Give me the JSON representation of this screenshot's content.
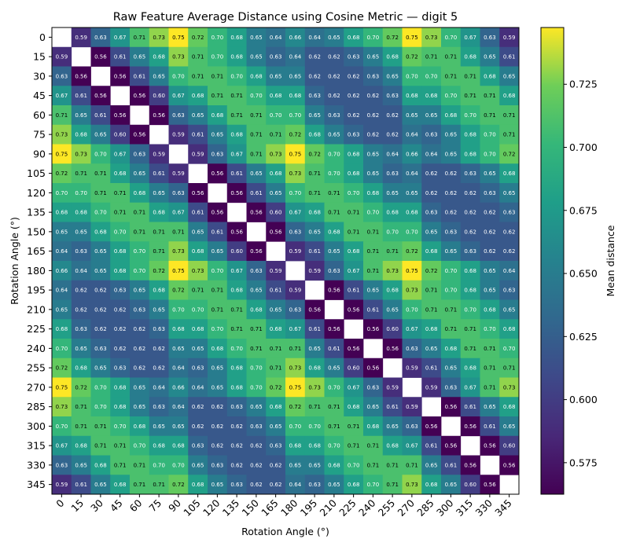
{
  "chart_data": {
    "type": "heatmap",
    "title": "Raw Feature Average Distance using Cosine Metric — digit 5",
    "xlabel": "Rotation Angle (°)",
    "ylabel": "Rotation Angle (°)",
    "colorbar_label": "Mean distance",
    "colormap": "viridis",
    "vmin": 0.5625,
    "vmax": 0.7475,
    "colorbar_ticks": [
      "0.575",
      "0.600",
      "0.625",
      "0.650",
      "0.675",
      "0.700",
      "0.725"
    ],
    "diagonal": "blank",
    "categories": [
      "0",
      "15",
      "30",
      "45",
      "60",
      "75",
      "90",
      "105",
      "120",
      "135",
      "150",
      "165",
      "180",
      "195",
      "210",
      "225",
      "240",
      "255",
      "270",
      "285",
      "300",
      "315",
      "330",
      "345"
    ],
    "values": [
      [
        null,
        0.59,
        0.63,
        0.67,
        0.71,
        0.73,
        0.75,
        0.72,
        0.7,
        0.68,
        0.65,
        0.64,
        0.66,
        0.64,
        0.65,
        0.68,
        0.7,
        0.72,
        0.75,
        0.73,
        0.7,
        0.67,
        0.63,
        0.59
      ],
      [
        0.59,
        null,
        0.56,
        0.61,
        0.65,
        0.68,
        0.73,
        0.71,
        0.7,
        0.68,
        0.65,
        0.63,
        0.64,
        0.62,
        0.62,
        0.63,
        0.65,
        0.68,
        0.72,
        0.71,
        0.71,
        0.68,
        0.65,
        0.61
      ],
      [
        0.63,
        0.56,
        null,
        0.56,
        0.61,
        0.65,
        0.7,
        0.71,
        0.71,
        0.7,
        0.68,
        0.65,
        0.65,
        0.62,
        0.62,
        0.62,
        0.63,
        0.65,
        0.7,
        0.7,
        0.71,
        0.71,
        0.68,
        0.65
      ],
      [
        0.67,
        0.61,
        0.56,
        null,
        0.56,
        0.6,
        0.67,
        0.68,
        0.71,
        0.71,
        0.7,
        0.68,
        0.68,
        0.63,
        0.62,
        0.62,
        0.62,
        0.63,
        0.68,
        0.68,
        0.7,
        0.71,
        0.71,
        0.68
      ],
      [
        0.71,
        0.65,
        0.61,
        0.56,
        null,
        0.56,
        0.63,
        0.65,
        0.68,
        0.71,
        0.71,
        0.7,
        0.7,
        0.65,
        0.63,
        0.62,
        0.62,
        0.62,
        0.65,
        0.65,
        0.68,
        0.7,
        0.71,
        0.71
      ],
      [
        0.73,
        0.68,
        0.65,
        0.6,
        0.56,
        null,
        0.59,
        0.61,
        0.65,
        0.68,
        0.71,
        0.71,
        0.72,
        0.68,
        0.65,
        0.63,
        0.62,
        0.62,
        0.64,
        0.63,
        0.65,
        0.68,
        0.7,
        0.71
      ],
      [
        0.75,
        0.73,
        0.7,
        0.67,
        0.63,
        0.59,
        null,
        0.59,
        0.63,
        0.67,
        0.71,
        0.73,
        0.75,
        0.72,
        0.7,
        0.68,
        0.65,
        0.64,
        0.66,
        0.64,
        0.65,
        0.68,
        0.7,
        0.72
      ],
      [
        0.72,
        0.71,
        0.71,
        0.68,
        0.65,
        0.61,
        0.59,
        null,
        0.56,
        0.61,
        0.65,
        0.68,
        0.73,
        0.71,
        0.7,
        0.68,
        0.65,
        0.63,
        0.64,
        0.62,
        0.62,
        0.63,
        0.65,
        0.68
      ],
      [
        0.7,
        0.7,
        0.71,
        0.71,
        0.68,
        0.65,
        0.63,
        0.56,
        null,
        0.56,
        0.61,
        0.65,
        0.7,
        0.71,
        0.71,
        0.7,
        0.68,
        0.65,
        0.65,
        0.62,
        0.62,
        0.62,
        0.63,
        0.65
      ],
      [
        0.68,
        0.68,
        0.7,
        0.71,
        0.71,
        0.68,
        0.67,
        0.61,
        0.56,
        null,
        0.56,
        0.6,
        0.67,
        0.68,
        0.71,
        0.71,
        0.7,
        0.68,
        0.68,
        0.63,
        0.62,
        0.62,
        0.62,
        0.63
      ],
      [
        0.65,
        0.65,
        0.68,
        0.7,
        0.71,
        0.71,
        0.71,
        0.65,
        0.61,
        0.56,
        null,
        0.56,
        0.63,
        0.65,
        0.68,
        0.71,
        0.71,
        0.7,
        0.7,
        0.65,
        0.63,
        0.62,
        0.62,
        0.62
      ],
      [
        0.64,
        0.63,
        0.65,
        0.68,
        0.7,
        0.71,
        0.73,
        0.68,
        0.65,
        0.6,
        0.56,
        null,
        0.59,
        0.61,
        0.65,
        0.68,
        0.71,
        0.71,
        0.72,
        0.68,
        0.65,
        0.63,
        0.62,
        0.62
      ],
      [
        0.66,
        0.64,
        0.65,
        0.68,
        0.7,
        0.72,
        0.75,
        0.73,
        0.7,
        0.67,
        0.63,
        0.59,
        null,
        0.59,
        0.63,
        0.67,
        0.71,
        0.73,
        0.75,
        0.72,
        0.7,
        0.68,
        0.65,
        0.64
      ],
      [
        0.64,
        0.62,
        0.62,
        0.63,
        0.65,
        0.68,
        0.72,
        0.71,
        0.71,
        0.68,
        0.65,
        0.61,
        0.59,
        null,
        0.56,
        0.61,
        0.65,
        0.68,
        0.73,
        0.71,
        0.7,
        0.68,
        0.65,
        0.63
      ],
      [
        0.65,
        0.62,
        0.62,
        0.62,
        0.63,
        0.65,
        0.7,
        0.7,
        0.71,
        0.71,
        0.68,
        0.65,
        0.63,
        0.56,
        null,
        0.56,
        0.61,
        0.65,
        0.7,
        0.71,
        0.71,
        0.7,
        0.68,
        0.65
      ],
      [
        0.68,
        0.63,
        0.62,
        0.62,
        0.62,
        0.63,
        0.68,
        0.68,
        0.7,
        0.71,
        0.71,
        0.68,
        0.67,
        0.61,
        0.56,
        null,
        0.56,
        0.6,
        0.67,
        0.68,
        0.71,
        0.71,
        0.7,
        0.68
      ],
      [
        0.7,
        0.65,
        0.63,
        0.62,
        0.62,
        0.62,
        0.65,
        0.65,
        0.68,
        0.7,
        0.71,
        0.71,
        0.71,
        0.65,
        0.61,
        0.56,
        null,
        0.56,
        0.63,
        0.65,
        0.68,
        0.71,
        0.71,
        0.7
      ],
      [
        0.72,
        0.68,
        0.65,
        0.63,
        0.62,
        0.62,
        0.64,
        0.63,
        0.65,
        0.68,
        0.7,
        0.71,
        0.73,
        0.68,
        0.65,
        0.6,
        0.56,
        null,
        0.59,
        0.61,
        0.65,
        0.68,
        0.71,
        0.71
      ],
      [
        0.75,
        0.72,
        0.7,
        0.68,
        0.65,
        0.64,
        0.66,
        0.64,
        0.65,
        0.68,
        0.7,
        0.72,
        0.75,
        0.73,
        0.7,
        0.67,
        0.63,
        0.59,
        null,
        0.59,
        0.63,
        0.67,
        0.71,
        0.73
      ],
      [
        0.73,
        0.71,
        0.7,
        0.68,
        0.65,
        0.63,
        0.64,
        0.62,
        0.62,
        0.63,
        0.65,
        0.68,
        0.72,
        0.71,
        0.71,
        0.68,
        0.65,
        0.61,
        0.59,
        null,
        0.56,
        0.61,
        0.65,
        0.68
      ],
      [
        0.7,
        0.71,
        0.71,
        0.7,
        0.68,
        0.65,
        0.65,
        0.62,
        0.62,
        0.62,
        0.63,
        0.65,
        0.7,
        0.7,
        0.71,
        0.71,
        0.68,
        0.65,
        0.63,
        0.56,
        null,
        0.56,
        0.61,
        0.65
      ],
      [
        0.67,
        0.68,
        0.71,
        0.71,
        0.7,
        0.68,
        0.68,
        0.63,
        0.62,
        0.62,
        0.62,
        0.63,
        0.68,
        0.68,
        0.7,
        0.71,
        0.71,
        0.68,
        0.67,
        0.61,
        0.56,
        null,
        0.56,
        0.6
      ],
      [
        0.63,
        0.65,
        0.68,
        0.71,
        0.71,
        0.7,
        0.7,
        0.65,
        0.63,
        0.62,
        0.62,
        0.62,
        0.65,
        0.65,
        0.68,
        0.7,
        0.71,
        0.71,
        0.71,
        0.65,
        0.61,
        0.56,
        null,
        0.56
      ],
      [
        0.59,
        0.61,
        0.65,
        0.68,
        0.71,
        0.71,
        0.72,
        0.68,
        0.65,
        0.63,
        0.62,
        0.62,
        0.64,
        0.63,
        0.65,
        0.68,
        0.7,
        0.71,
        0.73,
        0.68,
        0.65,
        0.6,
        0.56,
        null
      ]
    ]
  }
}
